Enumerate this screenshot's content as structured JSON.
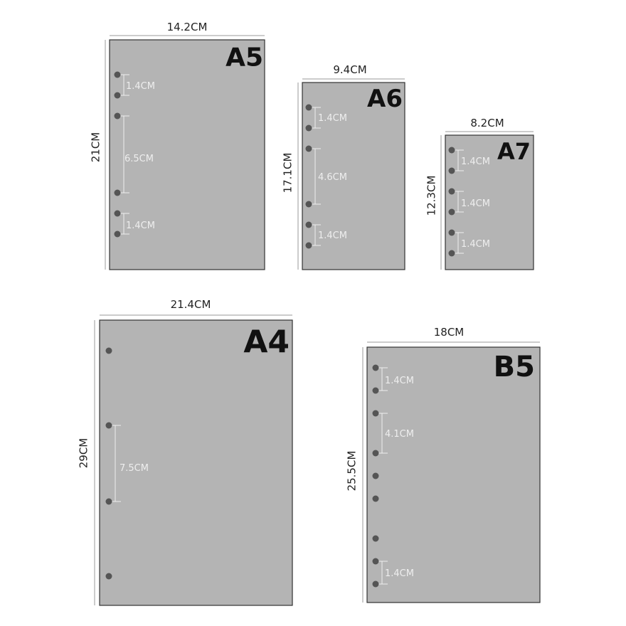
{
  "papers": [
    {
      "name": "A5",
      "width": "14.2CM",
      "height": "21CM",
      "spacings": [
        "1.4CM",
        "6.5CM",
        "1.4CM"
      ]
    },
    {
      "name": "A6",
      "width": "9.4CM",
      "height": "17.1CM",
      "spacings": [
        "1.4CM",
        "4.6CM",
        "1.4CM"
      ]
    },
    {
      "name": "A7",
      "width": "8.2CM",
      "height": "12.3CM",
      "spacings": [
        "1.4CM",
        "1.4CM",
        "1.4CM"
      ]
    },
    {
      "name": "A4",
      "width": "21.4CM",
      "height": "29CM",
      "spacings": [
        "7.5CM"
      ]
    },
    {
      "name": "B5",
      "width": "18CM",
      "height": "25.5CM",
      "spacings": [
        "1.4CM",
        "4.1CM",
        "1.4CM"
      ]
    }
  ]
}
